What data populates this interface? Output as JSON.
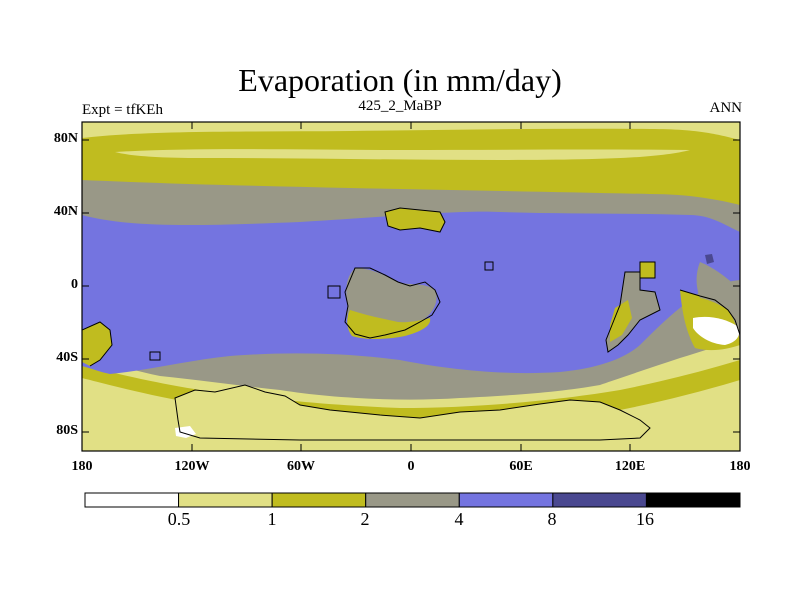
{
  "title": "Evaporation (in mm/day)",
  "left_string": "Expt = tfKEh",
  "center_string": "425_2_MaBP",
  "right_string": "ANN",
  "lat_labels": [
    "80N",
    "40N",
    "0",
    "40S",
    "80S"
  ],
  "lon_labels": [
    "180",
    "120W",
    "60W",
    "0",
    "60E",
    "120E",
    "180"
  ],
  "colorbar": {
    "colors": [
      "#ffffff",
      "#e1e085",
      "#c0bc1f",
      "#999887",
      "#7474e0",
      "#4a4890",
      "#000000"
    ],
    "labels": [
      "0.5",
      "1",
      "2",
      "4",
      "8",
      "16"
    ]
  }
}
